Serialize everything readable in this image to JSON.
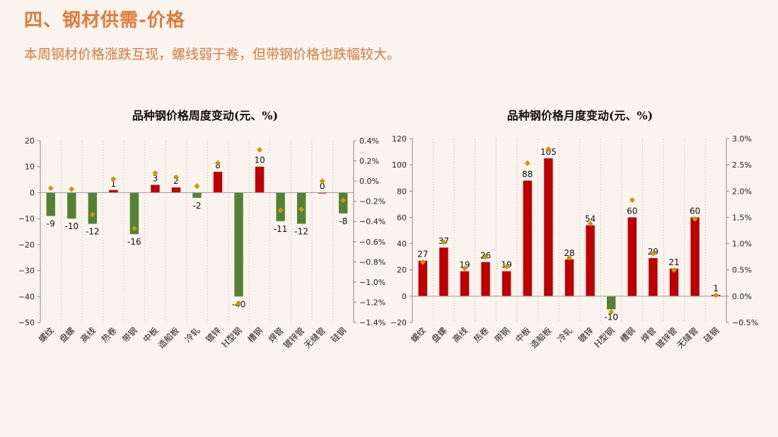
{
  "header": {
    "title": "四、钢材供需-价格",
    "subtitle": "本周钢材价格涨跌互现，螺线弱于卷，但带钢价格也跌幅较大。"
  },
  "colors": {
    "up": "#c00000",
    "down": "#548235",
    "marker": "#c99a06",
    "accent": "#e07b39"
  },
  "chart_data": [
    {
      "type": "bar",
      "title": "品种钢价格周度变动(元、%)",
      "categories": [
        "螺纹",
        "盘螺",
        "高线",
        "热卷",
        "带钢",
        "中板",
        "造船板",
        "冷轧",
        "镀锌",
        "H型钢",
        "槽钢",
        "焊管",
        "镀锌管",
        "无缝管",
        "硅钢"
      ],
      "series": [
        {
          "values": [
            -9,
            -10,
            -12,
            1,
            -16,
            3,
            2,
            -2,
            8,
            -40,
            10,
            -11,
            -12,
            0,
            -8
          ]
        },
        {
          "type": "scatter",
          "axis": "right",
          "values": [
            -0.07,
            -0.08,
            -0.33,
            0.02,
            -0.47,
            0.08,
            0.04,
            -0.05,
            0.18,
            -1.21,
            0.31,
            -0.29,
            -0.28,
            0.0,
            -0.19
          ]
        }
      ],
      "labels": [
        "-9",
        "-10",
        "-12",
        "1",
        "-16",
        "3",
        "2",
        "-2",
        "8",
        "-40",
        "10",
        "-11",
        "-12",
        "0",
        "-8"
      ],
      "y_ticks": [
        "20",
        "10",
        "0",
        "−10",
        "−20",
        "−30",
        "−40",
        "−50"
      ],
      "y2_ticks": [
        "0.4%",
        "0.2%",
        "0.0%",
        "−0.2%",
        "−0.4%",
        "−0.6%",
        "−0.8%",
        "−1.0%",
        "−1.2%",
        "−1.4%"
      ],
      "ylim": [
        -50,
        20
      ],
      "y2lim": [
        -1.4,
        0.4
      ]
    },
    {
      "type": "bar",
      "title": "品种钢价格月度变动(元、%)",
      "categories": [
        "螺纹",
        "盘螺",
        "高线",
        "热卷",
        "带钢",
        "中板",
        "造船板",
        "冷轧",
        "镀锌",
        "H型钢",
        "槽钢",
        "焊管",
        "镀锌管",
        "无缝管",
        "硅钢"
      ],
      "series": [
        {
          "values": [
            27,
            37,
            19,
            26,
            19,
            88,
            105,
            28,
            54,
            -10,
            60,
            29,
            21,
            60,
            1
          ]
        },
        {
          "type": "scatter",
          "axis": "right",
          "values": [
            0.65,
            1.03,
            0.53,
            0.75,
            0.56,
            2.53,
            2.8,
            0.73,
            1.38,
            -0.3,
            1.83,
            0.81,
            0.5,
            1.47,
            0.02
          ]
        }
      ],
      "labels": [
        "27",
        "37",
        "19",
        "26",
        "19",
        "88",
        "105",
        "28",
        "54",
        "-10",
        "60",
        "29",
        "21",
        "60",
        "1"
      ],
      "y_ticks": [
        "120",
        "100",
        "80",
        "60",
        "40",
        "20",
        "0",
        "−20"
      ],
      "y2_ticks": [
        "3.0%",
        "2.5%",
        "2.0%",
        "1.5%",
        "1.0%",
        "0.5%",
        "0.0%",
        "−0.5%"
      ],
      "ylim": [
        -20,
        120
      ],
      "y2lim": [
        -0.5,
        3.0
      ]
    }
  ]
}
